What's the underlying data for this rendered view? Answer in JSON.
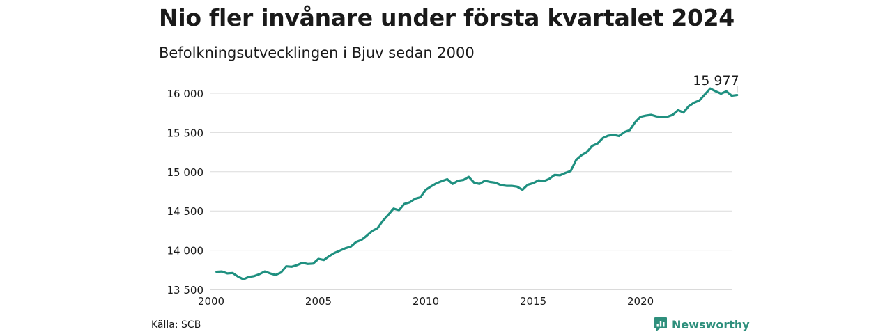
{
  "title": "Nio fler invånare under första kvartalet 2024",
  "subtitle": "Befolkningsutvecklingen i Bjuv sedan 2000",
  "source": "Källa: SCB",
  "brand": {
    "name": "Newsworthy",
    "icon": "newsworthy-logo-icon",
    "color": "#2e8f7c"
  },
  "chart_data": {
    "type": "line",
    "line_color": "#1f9080",
    "grid": true,
    "ylim": [
      13500,
      16000
    ],
    "yticks": [
      13500,
      14000,
      14500,
      15000,
      15500,
      16000
    ],
    "ytick_labels": [
      "13 500",
      "14 000",
      "14 500",
      "15 000",
      "15 500",
      "16 000"
    ],
    "xlim": [
      2000,
      2024.25
    ],
    "xticks": [
      2000,
      2005,
      2010,
      2015,
      2020
    ],
    "xtick_labels": [
      "2000",
      "2005",
      "2010",
      "2015",
      "2020"
    ],
    "end_label": "15 977",
    "series": [
      {
        "points": [
          [
            2000.25,
            13725
          ],
          [
            2000.5,
            13730
          ],
          [
            2000.75,
            13705
          ],
          [
            2001.0,
            13710
          ],
          [
            2001.25,
            13665
          ],
          [
            2001.5,
            13630
          ],
          [
            2001.75,
            13660
          ],
          [
            2002.0,
            13670
          ],
          [
            2002.25,
            13695
          ],
          [
            2002.5,
            13730
          ],
          [
            2002.75,
            13705
          ],
          [
            2003.0,
            13685
          ],
          [
            2003.25,
            13715
          ],
          [
            2003.5,
            13795
          ],
          [
            2003.75,
            13790
          ],
          [
            2004.0,
            13810
          ],
          [
            2004.25,
            13840
          ],
          [
            2004.5,
            13825
          ],
          [
            2004.75,
            13830
          ],
          [
            2005.0,
            13890
          ],
          [
            2005.25,
            13875
          ],
          [
            2005.5,
            13925
          ],
          [
            2005.75,
            13965
          ],
          [
            2006.0,
            13995
          ],
          [
            2006.25,
            14025
          ],
          [
            2006.5,
            14045
          ],
          [
            2006.75,
            14105
          ],
          [
            2007.0,
            14130
          ],
          [
            2007.25,
            14185
          ],
          [
            2007.5,
            14245
          ],
          [
            2007.75,
            14280
          ],
          [
            2008.0,
            14375
          ],
          [
            2008.25,
            14450
          ],
          [
            2008.5,
            14530
          ],
          [
            2008.75,
            14510
          ],
          [
            2009.0,
            14590
          ],
          [
            2009.25,
            14610
          ],
          [
            2009.5,
            14655
          ],
          [
            2009.75,
            14675
          ],
          [
            2010.0,
            14770
          ],
          [
            2010.25,
            14815
          ],
          [
            2010.5,
            14855
          ],
          [
            2010.75,
            14880
          ],
          [
            2011.0,
            14905
          ],
          [
            2011.25,
            14845
          ],
          [
            2011.5,
            14885
          ],
          [
            2011.75,
            14895
          ],
          [
            2012.0,
            14935
          ],
          [
            2012.25,
            14860
          ],
          [
            2012.5,
            14845
          ],
          [
            2012.75,
            14885
          ],
          [
            2013.0,
            14870
          ],
          [
            2013.25,
            14860
          ],
          [
            2013.5,
            14830
          ],
          [
            2013.75,
            14820
          ],
          [
            2014.0,
            14820
          ],
          [
            2014.25,
            14810
          ],
          [
            2014.5,
            14770
          ],
          [
            2014.75,
            14835
          ],
          [
            2015.0,
            14855
          ],
          [
            2015.25,
            14890
          ],
          [
            2015.5,
            14880
          ],
          [
            2015.75,
            14910
          ],
          [
            2016.0,
            14960
          ],
          [
            2016.25,
            14955
          ],
          [
            2016.5,
            14985
          ],
          [
            2016.75,
            15010
          ],
          [
            2017.0,
            15150
          ],
          [
            2017.25,
            15210
          ],
          [
            2017.5,
            15250
          ],
          [
            2017.75,
            15330
          ],
          [
            2018.0,
            15360
          ],
          [
            2018.25,
            15430
          ],
          [
            2018.5,
            15460
          ],
          [
            2018.75,
            15470
          ],
          [
            2019.0,
            15455
          ],
          [
            2019.25,
            15505
          ],
          [
            2019.5,
            15530
          ],
          [
            2019.75,
            15630
          ],
          [
            2020.0,
            15700
          ],
          [
            2020.25,
            15715
          ],
          [
            2020.5,
            15725
          ],
          [
            2020.75,
            15705
          ],
          [
            2021.0,
            15700
          ],
          [
            2021.25,
            15700
          ],
          [
            2021.5,
            15725
          ],
          [
            2021.75,
            15785
          ],
          [
            2022.0,
            15755
          ],
          [
            2022.25,
            15835
          ],
          [
            2022.5,
            15880
          ],
          [
            2022.75,
            15910
          ],
          [
            2023.0,
            15985
          ],
          [
            2023.25,
            16060
          ],
          [
            2023.5,
            16025
          ],
          [
            2023.75,
            15995
          ],
          [
            2024.0,
            16025
          ],
          [
            2024.25,
            15968
          ],
          [
            2024.5,
            15977
          ]
        ]
      }
    ]
  }
}
